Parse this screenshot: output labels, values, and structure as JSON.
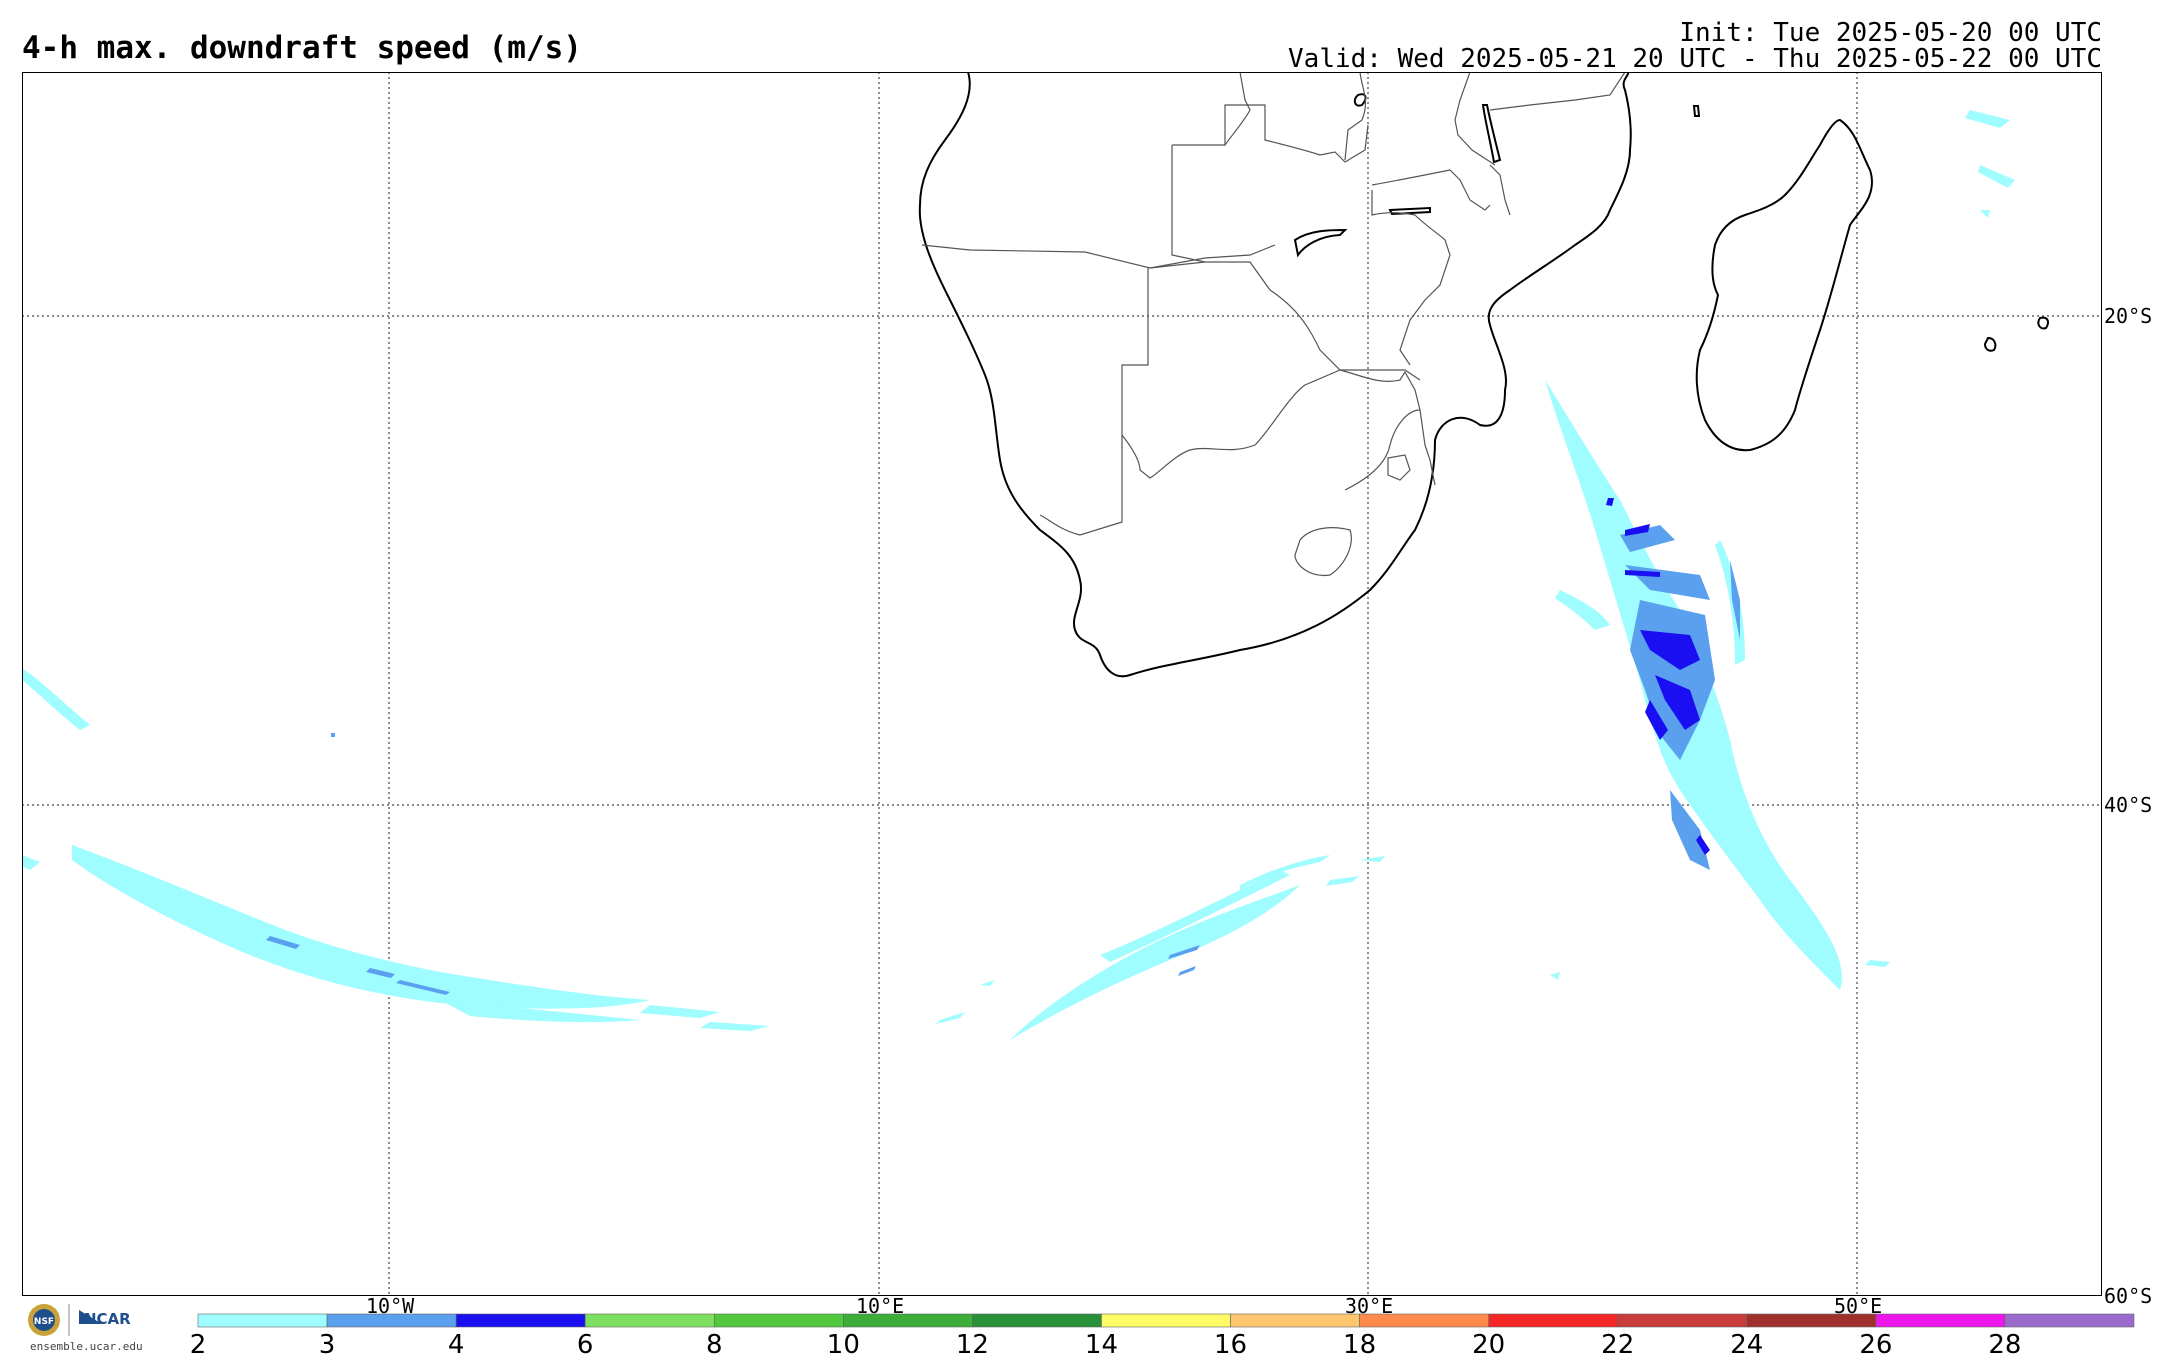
{
  "header": {
    "title": "4-h max. downdraft speed (m/s)",
    "init": "Init: Tue 2025-05-20 00 UTC",
    "valid": "Valid: Wed 2025-05-21 20 UTC - Thu 2025-05-22 00 UTC"
  },
  "map": {
    "latitude_labels": [
      "20°S",
      "40°S",
      "60°S"
    ],
    "longitude_labels": [
      "10°W",
      "10°E",
      "30°E",
      "50°E"
    ],
    "grid": "dotted",
    "coastline_color": "#000000",
    "border_color": "#555555"
  },
  "colorbar": {
    "ticks": [
      "2",
      "3",
      "4",
      "6",
      "8",
      "10",
      "12",
      "14",
      "16",
      "18",
      "20",
      "22",
      "24",
      "26",
      "28"
    ],
    "colors": [
      "#9ffcff",
      "#5aa0ee",
      "#1a0ff0",
      "#7de060",
      "#52c83c",
      "#3aae38",
      "#29913a",
      "#fffb66",
      "#ffc66e",
      "#ff8a4c",
      "#f52626",
      "#c93c3c",
      "#a0302c",
      "#ea16ea",
      "#9a6acd"
    ]
  },
  "logo": {
    "nsf": "NSF",
    "ncar": "NCAR",
    "url": "ensemble.ucar.edu"
  }
}
